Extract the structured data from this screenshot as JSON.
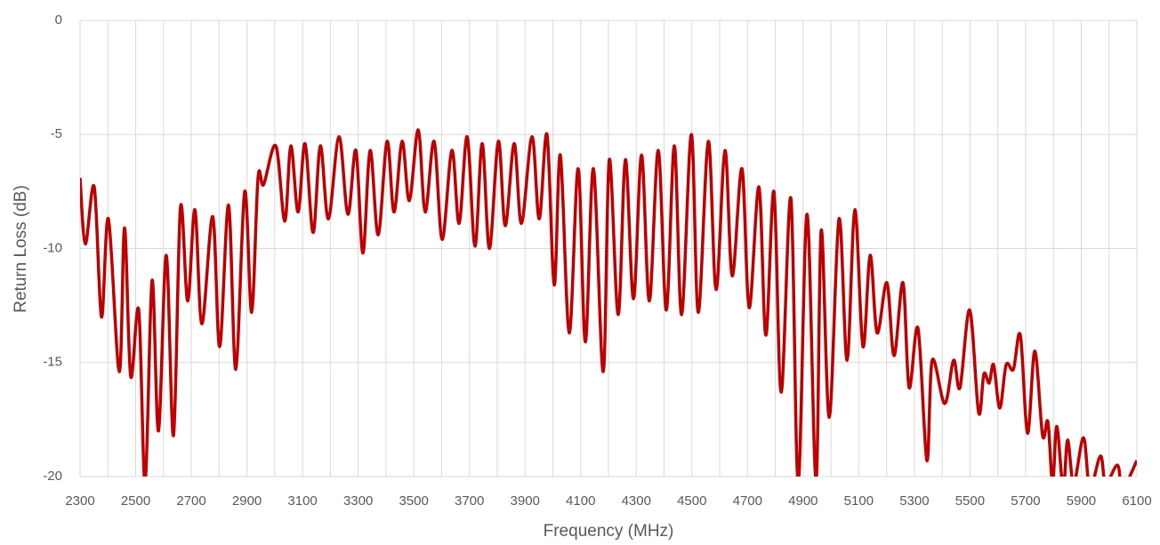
{
  "chart_data": {
    "type": "line",
    "xlabel": "Frequency (MHz)",
    "ylabel": "Return Loss (dB)",
    "color": "#c00000",
    "grid": true,
    "xlim": [
      2300,
      6100
    ],
    "ylim": [
      -20,
      0
    ],
    "xticks": [
      2300,
      2500,
      2700,
      2900,
      3100,
      3300,
      3500,
      3700,
      3900,
      4100,
      4300,
      4500,
      4700,
      4900,
      5100,
      5300,
      5500,
      5700,
      5900,
      6100
    ],
    "xgrid": [
      2300,
      2400,
      2500,
      2600,
      2700,
      2800,
      2900,
      3000,
      3100,
      3200,
      3300,
      3400,
      3500,
      3600,
      3700,
      3800,
      3900,
      4000,
      4100,
      4200,
      4300,
      4400,
      4500,
      4600,
      4700,
      4800,
      4900,
      5000,
      5100,
      5200,
      5300,
      5400,
      5500,
      5600,
      5700,
      5800,
      5900,
      6000,
      6100
    ],
    "yticks": [
      -20,
      -15,
      -10,
      -5,
      0
    ],
    "x": [
      2300,
      2319,
      2351,
      2377,
      2402,
      2441,
      2460,
      2482,
      2511,
      2534,
      2559,
      2582,
      2610,
      2636,
      2661,
      2687,
      2713,
      2738,
      2777,
      2802,
      2834,
      2860,
      2892,
      2917,
      2940,
      2960,
      3004,
      3036,
      3058,
      3084,
      3109,
      3138,
      3164,
      3193,
      3231,
      3263,
      3292,
      3317,
      3343,
      3372,
      3404,
      3429,
      3458,
      3484,
      3516,
      3541,
      3573,
      3602,
      3637,
      3663,
      3692,
      3720,
      3746,
      3772,
      3804,
      3829,
      3861,
      3887,
      3925,
      3951,
      3979,
      4005,
      4027,
      4059,
      4091,
      4117,
      4146,
      4181,
      4203,
      4235,
      4261,
      4290,
      4319,
      4347,
      4379,
      4408,
      4437,
      4463,
      4498,
      4523,
      4559,
      4587,
      4619,
      4645,
      4680,
      4706,
      4741,
      4766,
      4795,
      4821,
      4856,
      4882,
      4914,
      4946,
      4965,
      4994,
      5029,
      5058,
      5086,
      5115,
      5141,
      5166,
      5201,
      5227,
      5259,
      5281,
      5313,
      5345,
      5364,
      5409,
      5441,
      5464,
      5499,
      5531,
      5550,
      5569,
      5585,
      5607,
      5630,
      5656,
      5681,
      5707,
      5733,
      5761,
      5780,
      5797,
      5812,
      5835,
      5851,
      5873,
      5908,
      5931,
      5969,
      5988,
      6030,
      6049,
      6100
    ],
    "values": [
      -6.9,
      -9.8,
      -7.3,
      -13.0,
      -8.7,
      -15.4,
      -9.1,
      -15.6,
      -12.7,
      -20.3,
      -11.4,
      -18.0,
      -10.3,
      -18.2,
      -8.2,
      -12.3,
      -8.3,
      -13.3,
      -8.6,
      -14.3,
      -8.1,
      -15.3,
      -7.5,
      -12.8,
      -6.9,
      -7.2,
      -5.5,
      -8.8,
      -5.5,
      -8.4,
      -5.4,
      -9.3,
      -5.5,
      -8.7,
      -5.1,
      -8.5,
      -5.7,
      -10.2,
      -5.7,
      -9.4,
      -5.3,
      -8.4,
      -5.3,
      -7.9,
      -4.8,
      -8.4,
      -5.3,
      -9.6,
      -5.7,
      -8.9,
      -5.1,
      -9.9,
      -5.4,
      -10.0,
      -5.3,
      -9.0,
      -5.4,
      -8.9,
      -5.1,
      -8.7,
      -5.0,
      -11.6,
      -5.9,
      -13.7,
      -6.5,
      -14.1,
      -6.5,
      -15.4,
      -6.1,
      -12.9,
      -6.1,
      -12.2,
      -5.9,
      -12.3,
      -5.7,
      -12.7,
      -5.5,
      -12.9,
      -5.0,
      -12.8,
      -5.3,
      -11.8,
      -5.7,
      -11.2,
      -6.5,
      -12.6,
      -7.3,
      -13.8,
      -7.5,
      -16.3,
      -7.8,
      -20.3,
      -8.5,
      -20.2,
      -9.2,
      -17.4,
      -8.7,
      -14.9,
      -8.3,
      -14.3,
      -10.3,
      -13.7,
      -11.5,
      -14.7,
      -11.5,
      -16.1,
      -13.5,
      -19.3,
      -14.9,
      -16.8,
      -14.9,
      -16.1,
      -12.7,
      -17.2,
      -15.5,
      -15.9,
      -15.1,
      -17.0,
      -15.1,
      -15.3,
      -13.8,
      -18.1,
      -14.5,
      -18.2,
      -17.6,
      -20.3,
      -17.8,
      -20.5,
      -18.4,
      -20.3,
      -18.3,
      -20.5,
      -19.1,
      -20.3,
      -19.5,
      -20.5,
      -19.3
    ]
  }
}
